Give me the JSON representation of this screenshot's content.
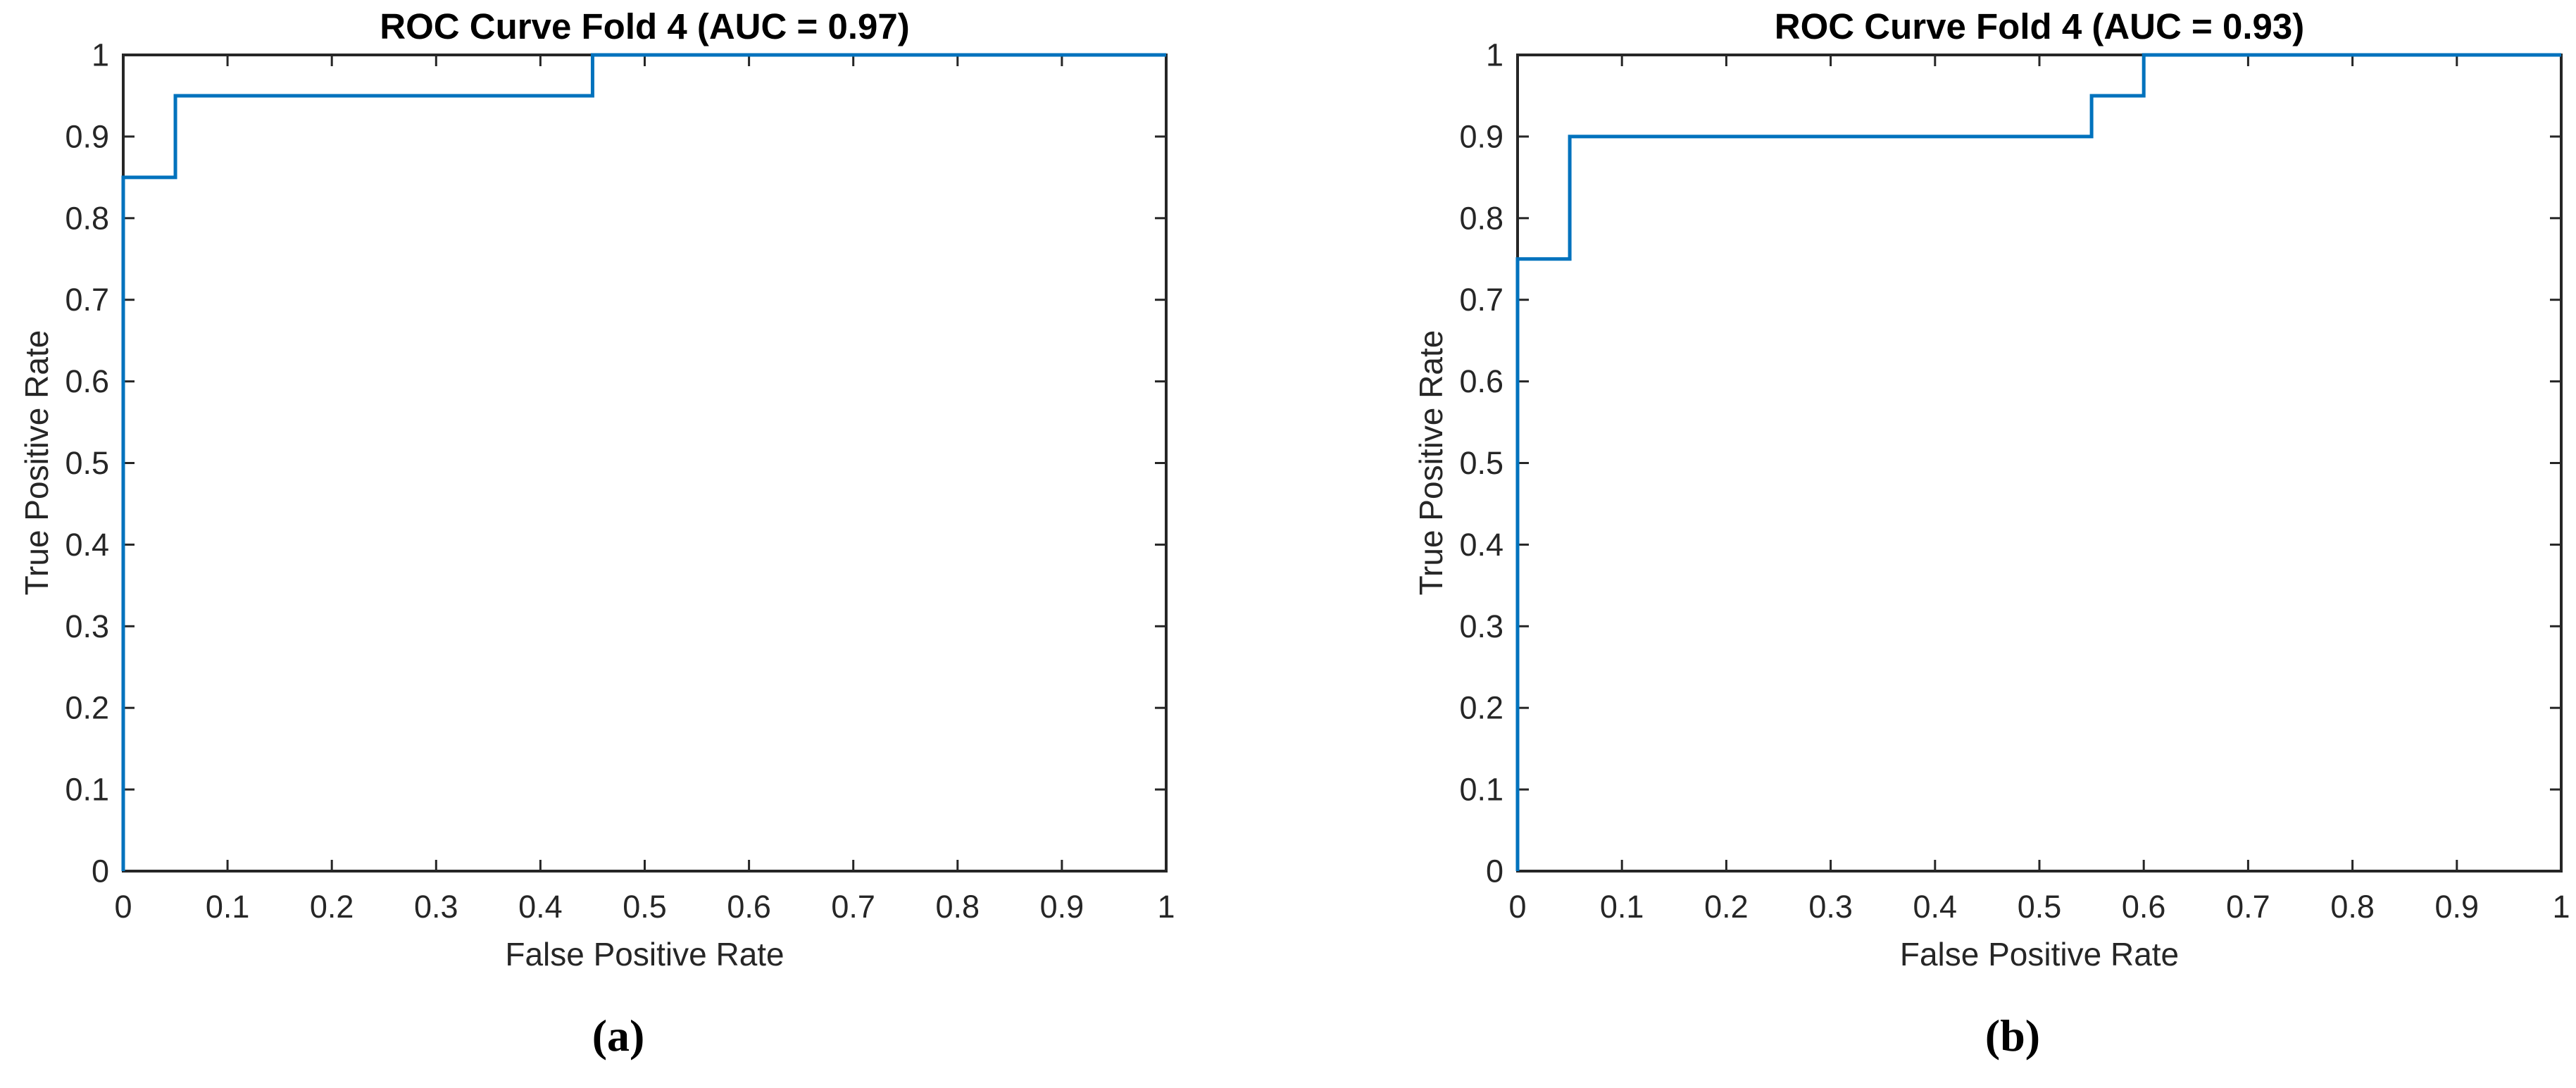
{
  "figure": {
    "background": "#ffffff",
    "axis_color": "#262626",
    "tick_label_color": "#262626",
    "title_color": "#000000",
    "curve_color": "#0072BD",
    "panels": [
      {
        "caption": "(a)"
      },
      {
        "caption": "(b)"
      }
    ]
  },
  "chart_data": [
    {
      "type": "line",
      "subtype": "roc-step",
      "title": "ROC Curve Fold 4 (AUC = 0.97)",
      "xlabel": "False Positive Rate",
      "ylabel": "True Positive Rate",
      "auc": 0.97,
      "xlim": [
        0,
        1
      ],
      "ylim": [
        0,
        1
      ],
      "xticks": [
        0,
        0.1,
        0.2,
        0.3,
        0.4,
        0.5,
        0.6,
        0.7,
        0.8,
        0.9,
        1
      ],
      "yticks": [
        0,
        0.1,
        0.2,
        0.3,
        0.4,
        0.5,
        0.6,
        0.7,
        0.8,
        0.9,
        1
      ],
      "grid": false,
      "legend": null,
      "series": [
        {
          "name": "ROC curve fold 4",
          "color": "#0072BD",
          "points": [
            [
              0,
              0
            ],
            [
              0,
              0.85
            ],
            [
              0.05,
              0.85
            ],
            [
              0.05,
              0.95
            ],
            [
              0.45,
              0.95
            ],
            [
              0.45,
              1
            ],
            [
              1,
              1
            ]
          ]
        }
      ]
    },
    {
      "type": "line",
      "subtype": "roc-step",
      "title": "ROC Curve Fold 4 (AUC = 0.93)",
      "xlabel": "False Positive Rate",
      "ylabel": "True Positive Rate",
      "auc": 0.93,
      "xlim": [
        0,
        1
      ],
      "ylim": [
        0,
        1
      ],
      "xticks": [
        0,
        0.1,
        0.2,
        0.3,
        0.4,
        0.5,
        0.6,
        0.7,
        0.8,
        0.9,
        1
      ],
      "yticks": [
        0,
        0.1,
        0.2,
        0.3,
        0.4,
        0.5,
        0.6,
        0.7,
        0.8,
        0.9,
        1
      ],
      "grid": false,
      "legend": null,
      "series": [
        {
          "name": "ROC curve fold 4",
          "color": "#0072BD",
          "points": [
            [
              0,
              0
            ],
            [
              0,
              0.75
            ],
            [
              0.05,
              0.75
            ],
            [
              0.05,
              0.9
            ],
            [
              0.55,
              0.9
            ],
            [
              0.55,
              0.95
            ],
            [
              0.6,
              0.95
            ],
            [
              0.6,
              1
            ],
            [
              1,
              1
            ]
          ]
        }
      ]
    }
  ]
}
